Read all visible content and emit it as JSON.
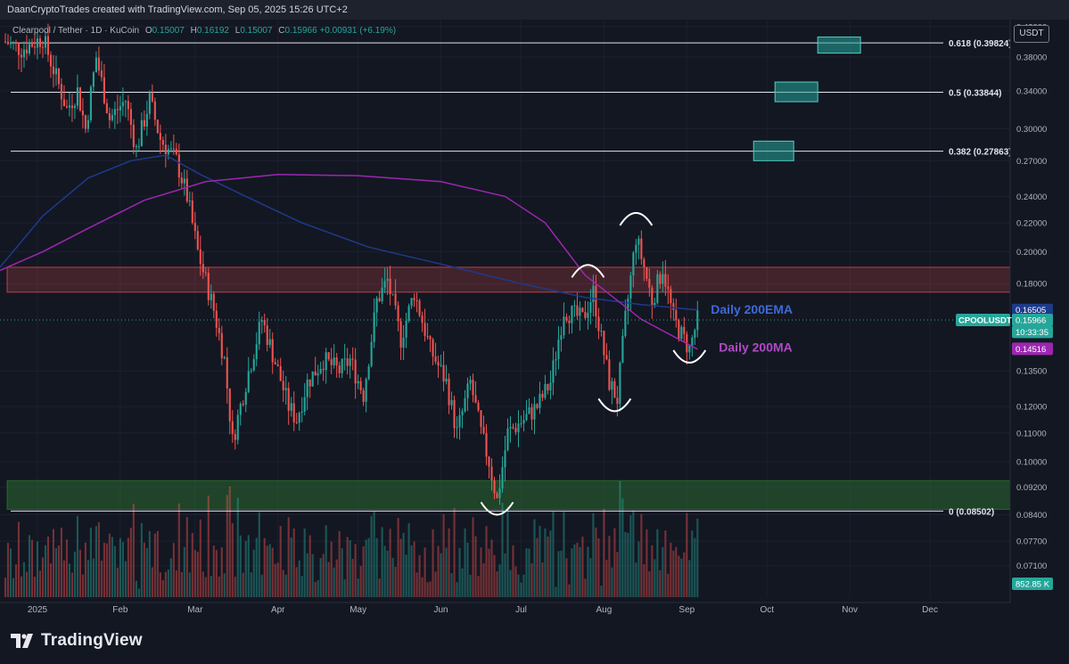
{
  "header": {
    "credit": "DaanCryptoTrades created with TradingView.com, Sep 05, 2025 15:26 UTC+2"
  },
  "legend": {
    "symbol": "Clearpool / Tether · 1D · KuCoin",
    "open_label": "O",
    "open": "0.15007",
    "high_label": "H",
    "high": "0.16192",
    "low_label": "L",
    "low": "0.15007",
    "close_label": "C",
    "close": "0.15966",
    "change": "+0.00931 (+6.19%)"
  },
  "toolbar": {
    "unit_button": "USDT"
  },
  "brand": {
    "name": "TradingView"
  },
  "colors": {
    "background": "#131722",
    "bull": "#26a69a",
    "bear": "#ef5350",
    "ema": "#1e3a8a",
    "ma": "#9c27b0",
    "resistance_zone": "#ef5350",
    "support_zone": "#2e7d32",
    "target_box": "#26a69a"
  },
  "chart_data": {
    "type": "candlestick",
    "title": "",
    "xlabel": "",
    "ylabel": "",
    "y_scale": "log",
    "ylim": [
      0.064,
      0.43
    ],
    "xlim": [
      "2024-12-18",
      "2025-12-31"
    ],
    "y_ticks": [
      "0.42000",
      "0.38000",
      "0.34000",
      "0.30000",
      "0.27000",
      "0.24000",
      "0.22000",
      "0.20000",
      "0.18000",
      "0.13500",
      "0.12000",
      "0.11000",
      "0.10000",
      "0.09200",
      "0.08400",
      "0.07700",
      "0.07100"
    ],
    "x_ticks": [
      {
        "label": "2025",
        "date": "2025-01-01"
      },
      {
        "label": "Feb",
        "date": "2025-02-01"
      },
      {
        "label": "Mar",
        "date": "2025-03-01"
      },
      {
        "label": "Apr",
        "date": "2025-04-01"
      },
      {
        "label": "May",
        "date": "2025-05-01"
      },
      {
        "label": "Jun",
        "date": "2025-06-01"
      },
      {
        "label": "Jul",
        "date": "2025-07-01"
      },
      {
        "label": "Aug",
        "date": "2025-08-01"
      },
      {
        "label": "Sep",
        "date": "2025-09-01"
      },
      {
        "label": "Oct",
        "date": "2025-10-01"
      },
      {
        "label": "Nov",
        "date": "2025-11-01"
      },
      {
        "label": "Dec",
        "date": "2025-12-01"
      }
    ],
    "fib_levels": [
      {
        "label": "0.618 (0.39824)",
        "value": 0.39824
      },
      {
        "label": "0.5 (0.33844)",
        "value": 0.33844
      },
      {
        "label": "0.382 (0.27863)",
        "value": 0.27863
      },
      {
        "label": "0 (0.08502)",
        "value": 0.08502
      }
    ],
    "zones": [
      {
        "name": "resistance",
        "from": 0.175,
        "to": 0.19
      },
      {
        "name": "support",
        "from": 0.0855,
        "to": 0.094
      }
    ],
    "target_boxes": [
      {
        "date_start": "2025-10-20",
        "date_end": "2025-11-05",
        "from": 0.385,
        "to": 0.406
      },
      {
        "date_start": "2025-10-04",
        "date_end": "2025-10-20",
        "from": 0.328,
        "to": 0.35
      },
      {
        "date_start": "2025-09-26",
        "date_end": "2025-10-11",
        "from": 0.27,
        "to": 0.288
      }
    ],
    "annotations": [
      {
        "text": "Daily 200EMA",
        "date": "2025-09-10",
        "value": 0.1655
      },
      {
        "text": "Daily 200MA",
        "date": "2025-09-13",
        "value": 0.146
      }
    ],
    "arcs": [
      {
        "shape": "bottom",
        "date": "2025-06-22",
        "value": 0.086
      },
      {
        "shape": "top",
        "date": "2025-07-26",
        "value": 0.187
      },
      {
        "shape": "bottom",
        "date": "2025-08-05",
        "value": 0.121
      },
      {
        "shape": "top",
        "date": "2025-08-13",
        "value": 0.222
      },
      {
        "shape": "bottom",
        "date": "2025-09-02",
        "value": 0.142
      }
    ],
    "price_tags": [
      {
        "label": "0.16505",
        "value": 0.16505,
        "color": "#1e3a8a"
      },
      {
        "label": "0.15966",
        "value": 0.15966,
        "color": "#26a69a"
      },
      {
        "label": "10:33:35",
        "value": 0.1535,
        "color": "#26a69a"
      },
      {
        "label": "0.14516",
        "value": 0.14516,
        "color": "#9c27b0"
      }
    ],
    "symbol_tag": "CPOOLUSDT",
    "volume_tag": "852.85 K",
    "price_path": [
      [
        "2024-12-20",
        0.4
      ],
      [
        "2024-12-26",
        0.39
      ],
      [
        "2025-01-03",
        0.405
      ],
      [
        "2025-01-07",
        0.365
      ],
      [
        "2025-01-12",
        0.32
      ],
      [
        "2025-01-16",
        0.34
      ],
      [
        "2025-01-19",
        0.3
      ],
      [
        "2025-01-23",
        0.38
      ],
      [
        "2025-01-28",
        0.31
      ],
      [
        "2025-02-03",
        0.33
      ],
      [
        "2025-02-07",
        0.28
      ],
      [
        "2025-02-12",
        0.33
      ],
      [
        "2025-02-16",
        0.29
      ],
      [
        "2025-02-22",
        0.27
      ],
      [
        "2025-02-26",
        0.24
      ],
      [
        "2025-03-02",
        0.2
      ],
      [
        "2025-03-08",
        0.165
      ],
      [
        "2025-03-12",
        0.14
      ],
      [
        "2025-03-15",
        0.107
      ],
      [
        "2025-03-20",
        0.13
      ],
      [
        "2025-03-26",
        0.16
      ],
      [
        "2025-04-01",
        0.135
      ],
      [
        "2025-04-05",
        0.12
      ],
      [
        "2025-04-08",
        0.115
      ],
      [
        "2025-04-12",
        0.13
      ],
      [
        "2025-04-18",
        0.14
      ],
      [
        "2025-04-24",
        0.135
      ],
      [
        "2025-04-28",
        0.14
      ],
      [
        "2025-05-03",
        0.125
      ],
      [
        "2025-05-08",
        0.17
      ],
      [
        "2025-05-12",
        0.182
      ],
      [
        "2025-05-17",
        0.15
      ],
      [
        "2025-05-22",
        0.175
      ],
      [
        "2025-05-28",
        0.145
      ],
      [
        "2025-06-03",
        0.13
      ],
      [
        "2025-06-07",
        0.11
      ],
      [
        "2025-06-12",
        0.13
      ],
      [
        "2025-06-16",
        0.11
      ],
      [
        "2025-06-19",
        0.1
      ],
      [
        "2025-06-22",
        0.088
      ],
      [
        "2025-06-26",
        0.11
      ],
      [
        "2025-07-02",
        0.115
      ],
      [
        "2025-07-07",
        0.12
      ],
      [
        "2025-07-12",
        0.13
      ],
      [
        "2025-07-17",
        0.165
      ],
      [
        "2025-07-24",
        0.16
      ],
      [
        "2025-07-28",
        0.175
      ],
      [
        "2025-07-31",
        0.15
      ],
      [
        "2025-08-03",
        0.13
      ],
      [
        "2025-08-06",
        0.123
      ],
      [
        "2025-08-09",
        0.16
      ],
      [
        "2025-08-13",
        0.21
      ],
      [
        "2025-08-16",
        0.19
      ],
      [
        "2025-08-19",
        0.17
      ],
      [
        "2025-08-23",
        0.19
      ],
      [
        "2025-08-27",
        0.16
      ],
      [
        "2025-08-30",
        0.152
      ],
      [
        "2025-09-02",
        0.145
      ],
      [
        "2025-09-05",
        0.1597
      ]
    ],
    "ema_200": [
      [
        "2024-12-18",
        0.19
      ],
      [
        "2025-01-03",
        0.225
      ],
      [
        "2025-01-20",
        0.255
      ],
      [
        "2025-02-05",
        0.27
      ],
      [
        "2025-02-18",
        0.275
      ],
      [
        "2025-03-03",
        0.258
      ],
      [
        "2025-03-20",
        0.24
      ],
      [
        "2025-04-10",
        0.22
      ],
      [
        "2025-05-05",
        0.203
      ],
      [
        "2025-06-01",
        0.192
      ],
      [
        "2025-07-01",
        0.18
      ],
      [
        "2025-07-25",
        0.172
      ],
      [
        "2025-08-15",
        0.168
      ],
      [
        "2025-09-05",
        0.165
      ]
    ],
    "ma_200": [
      [
        "2024-12-18",
        0.188
      ],
      [
        "2025-01-03",
        0.2
      ],
      [
        "2025-01-20",
        0.216
      ],
      [
        "2025-02-10",
        0.237
      ],
      [
        "2025-03-05",
        0.252
      ],
      [
        "2025-04-01",
        0.258
      ],
      [
        "2025-05-01",
        0.257
      ],
      [
        "2025-06-01",
        0.252
      ],
      [
        "2025-06-25",
        0.24
      ],
      [
        "2025-07-10",
        0.22
      ],
      [
        "2025-07-25",
        0.185
      ],
      [
        "2025-08-15",
        0.16
      ],
      [
        "2025-09-05",
        0.145
      ]
    ]
  }
}
